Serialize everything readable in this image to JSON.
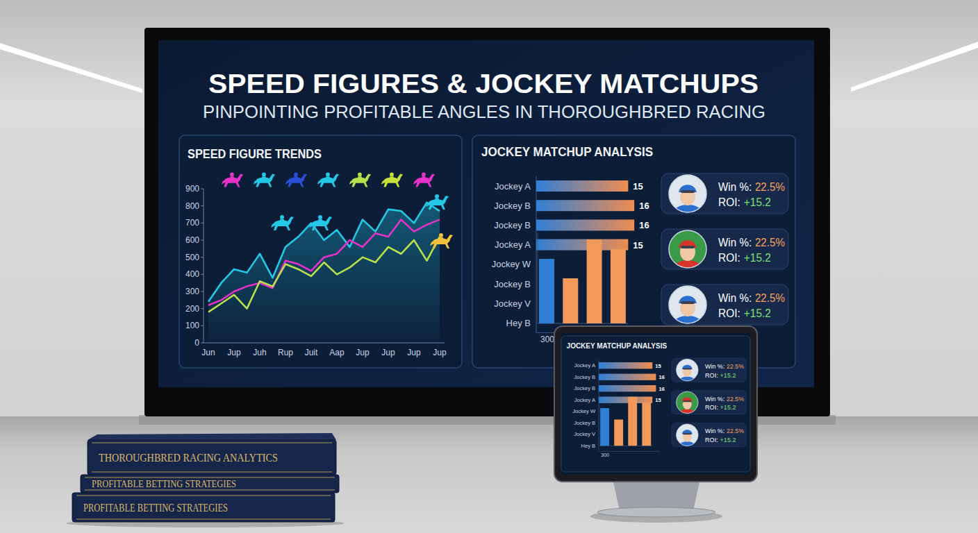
{
  "header": {
    "title": "SPEED FIGURES & JOCKEY MATCHUPS",
    "subtitle": "PINPOINTING PROFITABLE ANGLES IN THOROUGHBRED RACING"
  },
  "chart_data": [
    {
      "type": "line",
      "title": "SPEED FIGURE TRENDS",
      "categories": [
        "Jun",
        null,
        "Jup",
        null,
        "Juh",
        null,
        "Rup",
        null,
        "Juit",
        null,
        "Aap",
        null,
        "Jup",
        null,
        "Jup",
        null,
        "Jup",
        null,
        "Jup"
      ],
      "series": [
        {
          "color": "#22c8e6",
          "values": [
            240,
            350,
            430,
            410,
            520,
            380,
            560,
            620,
            700,
            600,
            660,
            560,
            720,
            650,
            780,
            770,
            700,
            820,
            770
          ]
        },
        {
          "color": "#e532c8",
          "values": [
            220,
            250,
            300,
            330,
            350,
            320,
            480,
            460,
            420,
            500,
            520,
            600,
            560,
            640,
            620,
            720,
            650,
            690,
            720
          ]
        },
        {
          "color": "#b8e04a",
          "values": [
            180,
            230,
            280,
            200,
            360,
            330,
            460,
            430,
            390,
            470,
            400,
            440,
            500,
            470,
            560,
            520,
            600,
            480,
            620
          ]
        }
      ],
      "ylim": [
        0,
        900
      ],
      "yticks": [
        0,
        100,
        200,
        300,
        400,
        500,
        600,
        700,
        800,
        900
      ],
      "grid": false
    },
    {
      "type": "bar",
      "orientation": "horizontal",
      "title": "JOCKEY MATCHUP ANALYSIS",
      "categories": [
        "Jockey A",
        "Jockey B",
        "Jockey B",
        "Jockey A",
        "Jockey W",
        "Jockey B",
        "Jockey V",
        "Hey B"
      ],
      "values": [
        15,
        16,
        16,
        15,
        null,
        null,
        null,
        null
      ],
      "xlim": [
        0,
        17
      ],
      "color": "#f08c50",
      "data_labels": true,
      "tick_labels": "y",
      "annotations": [
        "300"
      ]
    },
    {
      "type": "bar",
      "categories": [
        null,
        null,
        null,
        null
      ],
      "values": [
        93,
        65,
        121,
        107
      ],
      "colors": [
        "#2f7fd6",
        "#f0995a",
        "#f0995a",
        "#f0995a"
      ],
      "ylim": [
        0,
        130
      ],
      "tick_labels": false
    }
  ],
  "stat_cards": [
    {
      "win_label": "Win %:",
      "win_value": "22.5%",
      "roi_label": "ROI:",
      "roi_value": "+15.2"
    },
    {
      "win_label": "Win %:",
      "win_value": "22.5%",
      "roi_label": "ROI:",
      "roi_value": "+15.2"
    },
    {
      "win_label": "Win %:",
      "win_value": "22.5%",
      "roi_label": "ROI:",
      "roi_value": "+15.2"
    }
  ],
  "books": [
    "THOROUGHBRED RACING ANALYTICS",
    "PROFITABLE BETTING STRATEGIES",
    "PROFITABLE BETTING STRATEGIES"
  ]
}
